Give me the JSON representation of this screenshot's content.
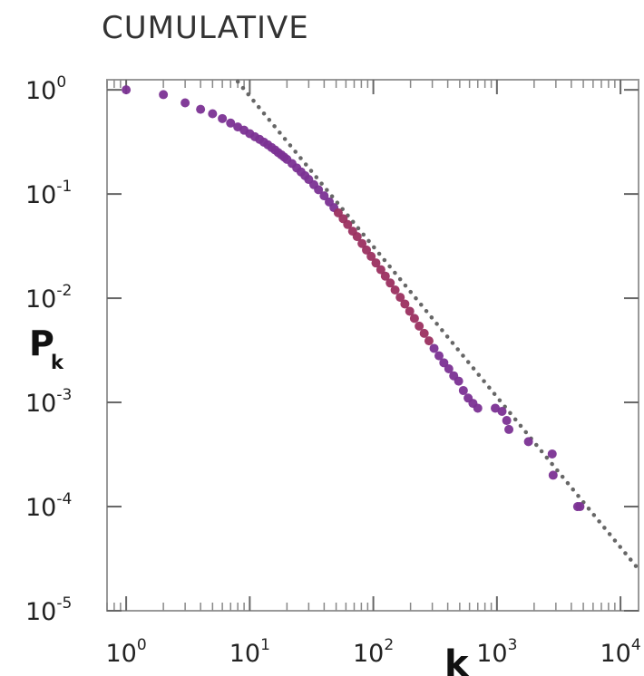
{
  "chart_data": {
    "type": "scatter",
    "title": "CUMULATIVE",
    "xlabel": "k",
    "ylabel": "P",
    "ylabel_subscript": "k",
    "xscale": "log",
    "yscale": "log",
    "xlim": [
      0.7,
      14000
    ],
    "ylim": [
      1e-05,
      1.25
    ],
    "grid": false,
    "marker_color": "#7b3294",
    "marker_color_mid": "#9b3060",
    "fit_line_color": "#666666",
    "x_ticks": [
      {
        "base": "10",
        "exp": "0",
        "value": 1
      },
      {
        "base": "10",
        "exp": "1",
        "value": 10
      },
      {
        "base": "10",
        "exp": "2",
        "value": 100
      },
      {
        "base": "10",
        "exp": "3",
        "value": 1000
      },
      {
        "base": "10",
        "exp": "4",
        "value": 10000
      }
    ],
    "y_ticks": [
      {
        "base": "10",
        "exp": "0",
        "value": 1
      },
      {
        "base": "10",
        "exp": "-1",
        "value": 0.1
      },
      {
        "base": "10",
        "exp": "-2",
        "value": 0.01
      },
      {
        "base": "10",
        "exp": "-3",
        "value": 0.001
      },
      {
        "base": "10",
        "exp": "-4",
        "value": 0.0001
      },
      {
        "base": "10",
        "exp": "-5",
        "value": 1e-05
      }
    ],
    "fit_line": {
      "style": "dotted",
      "x": [
        8.0,
        14000
      ],
      "y": [
        1.2,
        2.5e-05
      ]
    },
    "series": [
      {
        "points": [
          [
            1,
            1.0
          ],
          [
            2,
            0.9
          ],
          [
            3,
            0.75
          ],
          [
            4,
            0.65
          ],
          [
            5,
            0.59
          ],
          [
            6,
            0.53
          ],
          [
            7,
            0.48
          ],
          [
            8,
            0.44
          ],
          [
            9,
            0.41
          ],
          [
            10,
            0.38
          ],
          [
            11,
            0.355
          ],
          [
            12,
            0.335
          ],
          [
            13,
            0.315
          ],
          [
            14,
            0.297
          ],
          [
            15,
            0.28
          ],
          [
            16,
            0.265
          ],
          [
            17,
            0.25
          ],
          [
            18,
            0.238
          ],
          [
            19,
            0.226
          ],
          [
            20,
            0.215
          ],
          [
            22,
            0.196
          ],
          [
            24,
            0.178
          ],
          [
            26,
            0.163
          ],
          [
            28,
            0.15
          ],
          [
            30,
            0.138
          ],
          [
            33,
            0.123
          ],
          [
            36,
            0.11
          ],
          [
            40,
            0.096
          ],
          [
            44,
            0.084
          ],
          [
            48,
            0.074
          ],
          [
            52,
            0.066
          ],
          [
            57,
            0.058
          ],
          [
            62,
            0.051
          ],
          [
            68,
            0.044
          ],
          [
            74,
            0.039
          ],
          [
            81,
            0.0335
          ],
          [
            88,
            0.029
          ],
          [
            96,
            0.0252
          ],
          [
            105,
            0.0218
          ],
          [
            115,
            0.0188
          ],
          [
            125,
            0.0163
          ],
          [
            137,
            0.014
          ],
          [
            150,
            0.012
          ],
          [
            165,
            0.0102
          ],
          [
            180,
            0.0088
          ],
          [
            197,
            0.0075
          ],
          [
            215,
            0.0064
          ],
          [
            235,
            0.0054
          ],
          [
            258,
            0.0046
          ],
          [
            282,
            0.0039
          ],
          [
            310,
            0.0033
          ],
          [
            340,
            0.0028
          ],
          [
            372,
            0.0024
          ],
          [
            408,
            0.0021
          ],
          [
            447,
            0.0018
          ],
          [
            490,
            0.0016
          ],
          [
            535,
            0.0013
          ],
          [
            585,
            0.0011
          ],
          [
            640,
            0.00098
          ],
          [
            700,
            0.00088
          ],
          [
            970,
            0.00088
          ],
          [
            1100,
            0.00082
          ],
          [
            1200,
            0.00067
          ],
          [
            1250,
            0.00055
          ],
          [
            1800,
            0.00042
          ],
          [
            2800,
            0.00032
          ],
          [
            2850,
            0.0002
          ],
          [
            4500,
            0.0001
          ],
          [
            4700,
            0.0001
          ]
        ]
      }
    ]
  }
}
